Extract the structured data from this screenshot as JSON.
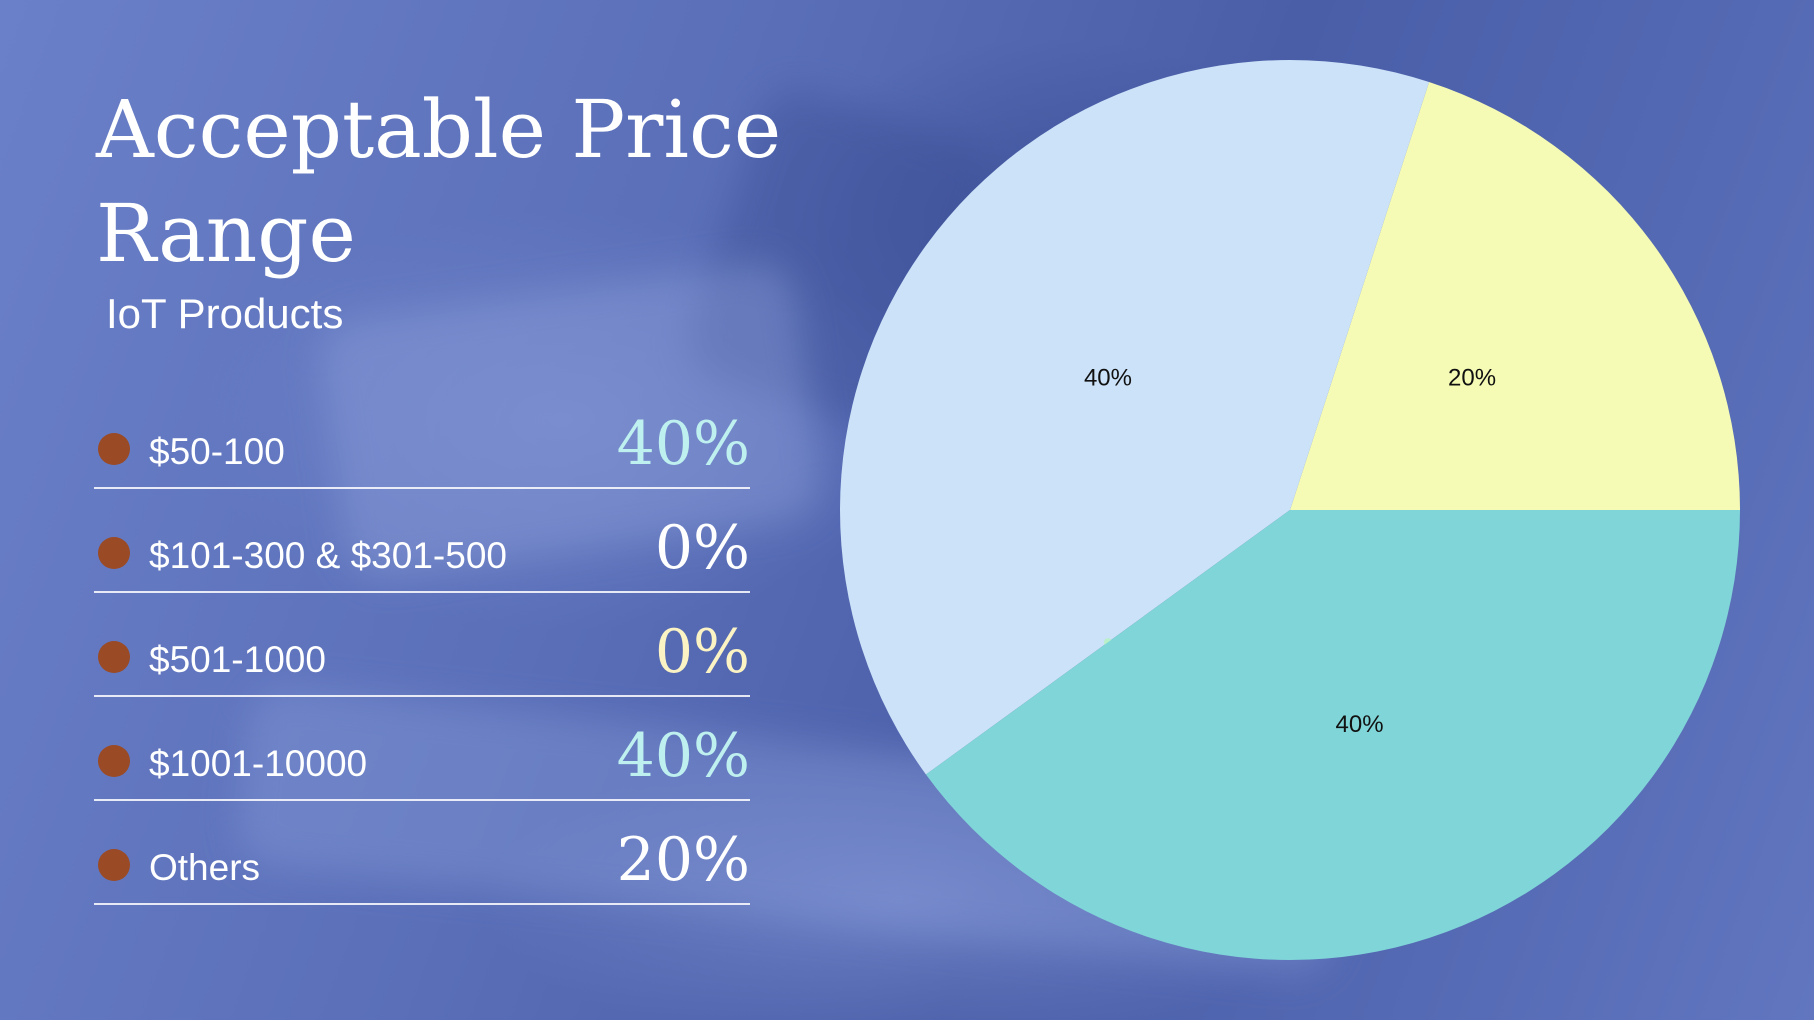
{
  "title": "Acceptable Price Range",
  "subtitle": "IoT Products",
  "legend": [
    {
      "label": "$50-100",
      "value": "40%",
      "value_color": "#bff0f0"
    },
    {
      "label": "$101-300 & $301-500",
      "value": "0%",
      "value_color": "#ffffff"
    },
    {
      "label": "$501-1000",
      "value": "0%",
      "value_color": "#fbf3c4"
    },
    {
      "label": "$1001-10000",
      "value": "40%",
      "value_color": "#bff0f0"
    },
    {
      "label": "Others",
      "value": "20%",
      "value_color": "#ffffff"
    }
  ],
  "chart_data": {
    "type": "pie",
    "slices": [
      {
        "label": "20%",
        "value": 20,
        "color": "#f5fbb4"
      },
      {
        "label": "40%",
        "value": 40,
        "color": "#cce2f8"
      },
      {
        "label": "0%",
        "value": 0,
        "color": "#b9f0c8"
      },
      {
        "label": "40%",
        "value": 40,
        "color": "#80d5d8"
      }
    ],
    "start_direction": "east",
    "direction": "counterclockwise"
  }
}
